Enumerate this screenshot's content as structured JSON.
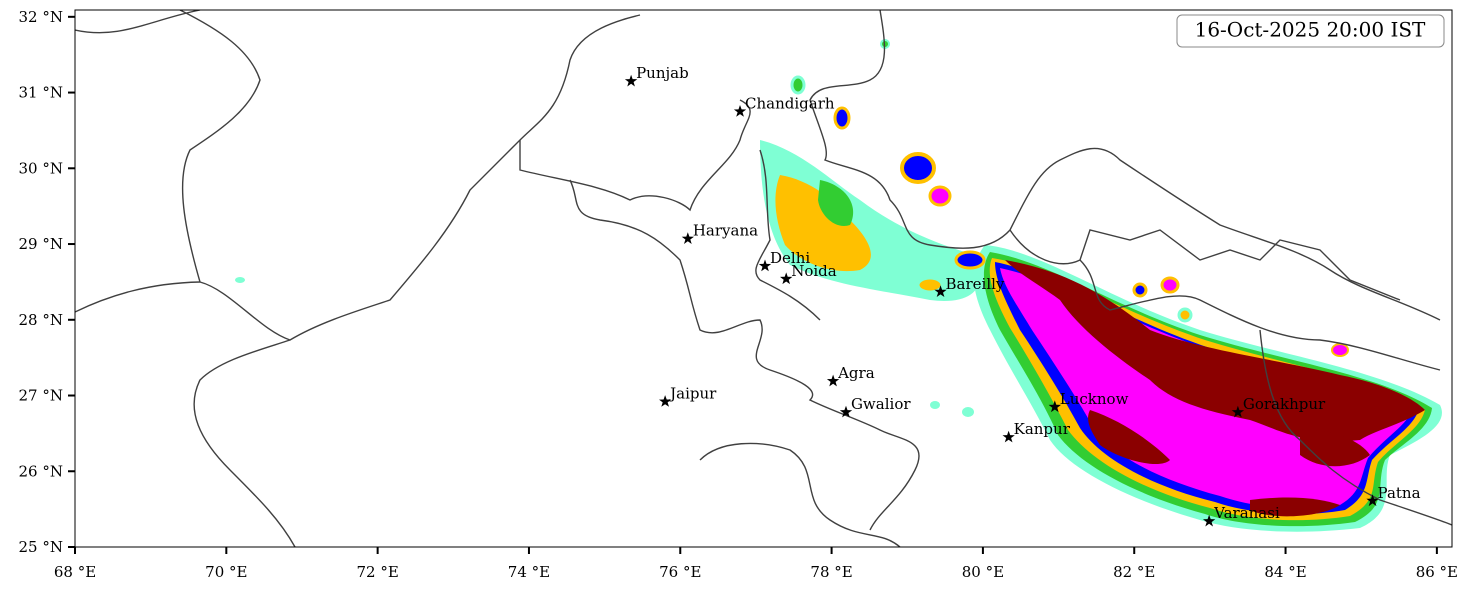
{
  "map": {
    "timestamp": "16-Oct-2025 20:00 IST",
    "lonlim": [
      68,
      86.2
    ],
    "latlim": [
      25,
      32.09
    ],
    "lon_ticks": [
      {
        "value": 68,
        "label": "68 °E"
      },
      {
        "value": 70,
        "label": "70 °E"
      },
      {
        "value": 72,
        "label": "72 °E"
      },
      {
        "value": 74,
        "label": "74 °E"
      },
      {
        "value": 76,
        "label": "76 °E"
      },
      {
        "value": 78,
        "label": "78 °E"
      },
      {
        "value": 80,
        "label": "80 °E"
      },
      {
        "value": 82,
        "label": "82 °E"
      },
      {
        "value": 84,
        "label": "84 °E"
      },
      {
        "value": 86,
        "label": "86 °E"
      }
    ],
    "lat_ticks": [
      {
        "value": 25,
        "label": "25 °N"
      },
      {
        "value": 26,
        "label": "26 °N"
      },
      {
        "value": 27,
        "label": "27 °N"
      },
      {
        "value": 28,
        "label": "28 °N"
      },
      {
        "value": 29,
        "label": "29 °N"
      },
      {
        "value": 30,
        "label": "30 °N"
      },
      {
        "value": 31,
        "label": "31 °N"
      },
      {
        "value": 32,
        "label": "32 °N"
      }
    ],
    "cities": [
      {
        "name": "Punjab",
        "lon": 75.35,
        "lat": 31.15
      },
      {
        "name": "Chandigarh",
        "lon": 76.79,
        "lat": 30.75
      },
      {
        "name": "Haryana",
        "lon": 76.1,
        "lat": 29.07
      },
      {
        "name": "Delhi",
        "lon": 77.12,
        "lat": 28.71
      },
      {
        "name": "Noida",
        "lon": 77.4,
        "lat": 28.54
      },
      {
        "name": "Bareilly",
        "lon": 79.44,
        "lat": 28.37
      },
      {
        "name": "Agra",
        "lon": 78.02,
        "lat": 27.19
      },
      {
        "name": "Jaipur",
        "lon": 75.8,
        "lat": 26.92
      },
      {
        "name": "Gwalior",
        "lon": 78.19,
        "lat": 26.78
      },
      {
        "name": "Lucknow",
        "lon": 80.95,
        "lat": 26.85
      },
      {
        "name": "Kanpur",
        "lon": 80.34,
        "lat": 26.45
      },
      {
        "name": "Gorakhpur",
        "lon": 83.37,
        "lat": 26.78
      },
      {
        "name": "Varanasi",
        "lon": 82.99,
        "lat": 25.34
      },
      {
        "name": "Patna",
        "lon": 85.15,
        "lat": 25.61
      }
    ]
  }
}
